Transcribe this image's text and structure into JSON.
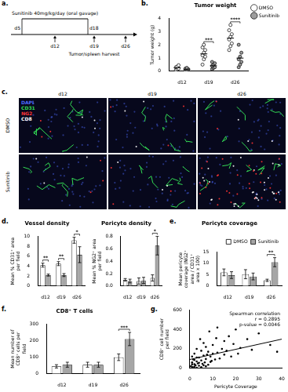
{
  "panel_a": {
    "label": "a.",
    "start": "d5",
    "end": "d18",
    "treatment": "Sunitinib 40mg/kg/day (oral gavage)",
    "timepoints": [
      "d12",
      "d19",
      "d26"
    ],
    "harvest": "Tumor/spleen harvest"
  },
  "panel_c": {
    "label": "c.",
    "columns": [
      "d12",
      "d19",
      "d26"
    ],
    "rows": [
      "DMSO",
      "Sunitinib"
    ],
    "channels": [
      {
        "name": "DAPI",
        "color": "#4d6bff"
      },
      {
        "name": "CD31",
        "color": "#33dd55"
      },
      {
        "name": "NG2",
        "color": "#ff3333"
      },
      {
        "name": "CD8",
        "color": "#ffffff"
      }
    ]
  },
  "chart_data": [
    {
      "panel": "b.",
      "type": "scatter",
      "title": "Tumor weight",
      "y_label": "Tumor weight (g)",
      "categories": [
        "d12",
        "d19",
        "d26"
      ],
      "series": [
        {
          "name": "DMSO",
          "color": "#ffffff",
          "marker": "circle",
          "values": [
            [
              0.1,
              0.15,
              0.2,
              0.3,
              0.35,
              0.45
            ],
            [
              0.5,
              0.9,
              1.1,
              1.2,
              1.4,
              1.6,
              1.8,
              2.0
            ],
            [
              1.6,
              1.9,
              2.1,
              2.4,
              2.6,
              2.8,
              3.1,
              3.5
            ]
          ],
          "means": [
            0.26,
            1.31,
            2.5
          ]
        },
        {
          "name": "Sunitinib",
          "color": "#9e9e9e",
          "marker": "circle",
          "values": [
            [
              0.05,
              0.1,
              0.15,
              0.2,
              0.25
            ],
            [
              0.15,
              0.25,
              0.3,
              0.4,
              0.5,
              0.6,
              0.7
            ],
            [
              0.3,
              0.5,
              0.7,
              0.9,
              1.1,
              1.4,
              2.0
            ]
          ],
          "means": [
            0.15,
            0.41,
            0.99
          ]
        }
      ],
      "ylim": [
        0,
        4
      ],
      "yticks": [
        0,
        1,
        2,
        3,
        4
      ],
      "grid": false,
      "legend": "right",
      "annotations": [
        {
          "category": "d19",
          "text": "***"
        },
        {
          "category": "d26",
          "text": "****"
        }
      ]
    },
    {
      "panel": "d.",
      "type": "bar",
      "title": "Vessel density",
      "y_label": "Mean % CD31⁺ area per field",
      "categories": [
        "d12",
        "d19",
        "d26"
      ],
      "series": [
        {
          "name": "DMSO",
          "color": "#ffffff",
          "values": [
            4.2,
            4.5,
            9.2
          ],
          "errors": [
            0.4,
            0.4,
            0.6
          ]
        },
        {
          "name": "Sunitinib",
          "color": "#a6a6a6",
          "values": [
            2.2,
            2.2,
            6.3
          ],
          "errors": [
            0.2,
            0.3,
            1.6
          ]
        }
      ],
      "ylim": [
        0,
        10
      ],
      "yticks": [
        0,
        2,
        4,
        6,
        8,
        10
      ],
      "grid": false,
      "annotations": [
        {
          "category": "d12",
          "text": "**"
        },
        {
          "category": "d19",
          "text": "**"
        },
        {
          "category": "d26",
          "text": "*"
        }
      ]
    },
    {
      "type": "bar",
      "title": "Pericyte density",
      "y_label": "Mean % NG2⁺ area per field",
      "categories": [
        "d12",
        "d19",
        "d26"
      ],
      "series": [
        {
          "name": "DMSO",
          "color": "#ffffff",
          "values": [
            0.1,
            0.08,
            0.13
          ],
          "errors": [
            0.02,
            0.05,
            0.05
          ]
        },
        {
          "name": "Sunitinib",
          "color": "#a6a6a6",
          "values": [
            0.08,
            0.09,
            0.65
          ],
          "errors": [
            0.03,
            0.05,
            0.15
          ]
        }
      ],
      "ylim": [
        0,
        0.8
      ],
      "yticks": [
        {
          "value": 0,
          "label": "0.0"
        },
        0.2,
        0.4,
        0.6,
        0.8
      ],
      "grid": false,
      "annotations": [
        {
          "category": "d26",
          "text": "*"
        }
      ]
    },
    {
      "panel": "e.",
      "type": "bar",
      "title": "Pericyte coverage",
      "y_label": "Mean pericyte coverage (NG2⁺ area / CD31⁺ area x 100)",
      "categories": [
        "d12",
        "d19",
        "d26"
      ],
      "series": [
        {
          "name": "DMSO",
          "color": "#ffffff",
          "values": [
            6,
            5.2,
            2.5
          ],
          "errors": [
            1.5,
            2,
            0.5
          ]
        },
        {
          "name": "Sunitinib",
          "color": "#a6a6a6",
          "values": [
            4.8,
            4.2,
            10.5
          ],
          "errors": [
            1.5,
            1.5,
            2
          ]
        }
      ],
      "ylim": [
        0,
        15
      ],
      "yticks": [
        0,
        5,
        10,
        15
      ],
      "grid": false,
      "legend": "top-right",
      "annotations": [
        {
          "category": "d26",
          "text": "**"
        }
      ]
    },
    {
      "panel": "f.",
      "type": "bar",
      "title": "CD8⁺ T cells",
      "y_label": "Mean number of CD8⁺ cells per field",
      "categories": [
        "d12",
        "d19",
        "d26"
      ],
      "series": [
        {
          "name": "DMSO",
          "color": "#ffffff",
          "values": [
            45,
            55,
            100
          ],
          "errors": [
            10,
            15,
            20
          ]
        },
        {
          "name": "Sunitinib",
          "color": "#a6a6a6",
          "values": [
            55,
            55,
            210
          ],
          "errors": [
            15,
            15,
            40
          ]
        }
      ],
      "ylim": [
        0,
        300
      ],
      "yticks": [
        0,
        100,
        200,
        300
      ],
      "grid": false,
      "annotations": [
        {
          "category": "d26",
          "text": "***"
        }
      ]
    },
    {
      "panel": "g.",
      "type": "scatter",
      "x_label": "Pericyte Coverage",
      "y_label": "CD8⁺ cell number per field",
      "color": "#000000",
      "x": [
        0.5,
        1,
        1.2,
        1.5,
        2,
        2,
        2.5,
        3,
        3,
        3.5,
        4,
        4,
        4.5,
        5,
        5,
        5.5,
        6,
        6,
        6.5,
        7,
        7,
        7.5,
        8,
        8,
        8.5,
        9,
        9.5,
        10,
        10,
        11,
        11.5,
        12,
        12,
        13,
        14,
        15,
        15,
        16,
        17,
        18,
        19,
        20,
        21,
        22,
        25,
        27,
        30,
        35,
        38,
        1,
        2,
        3,
        4,
        5,
        6,
        3,
        2,
        1,
        7,
        9
      ],
      "values": [
        20,
        60,
        10,
        90,
        40,
        150,
        30,
        70,
        200,
        50,
        110,
        25,
        300,
        80,
        180,
        45,
        130,
        260,
        60,
        95,
        220,
        140,
        35,
        170,
        380,
        120,
        75,
        240,
        150,
        90,
        310,
        160,
        420,
        100,
        200,
        140,
        280,
        180,
        330,
        120,
        250,
        400,
        150,
        210,
        300,
        190,
        360,
        240,
        170,
        120,
        15,
        5,
        55,
        10,
        30,
        110,
        85,
        40,
        20,
        65
      ],
      "fit_line": {
        "x": [
          0,
          40
        ],
        "y": [
          90,
          300
        ]
      },
      "xlim": [
        0,
        40
      ],
      "xticks": [
        0,
        10,
        20,
        30,
        40
      ],
      "ylim": [
        0,
        600
      ],
      "yticks": [
        0,
        200,
        400,
        600
      ],
      "grid": false,
      "annotations": [
        {
          "text": "Spearman correlation"
        },
        {
          "text": "r = 0.2895"
        },
        {
          "text": "p-value = 0.0046"
        }
      ]
    }
  ]
}
